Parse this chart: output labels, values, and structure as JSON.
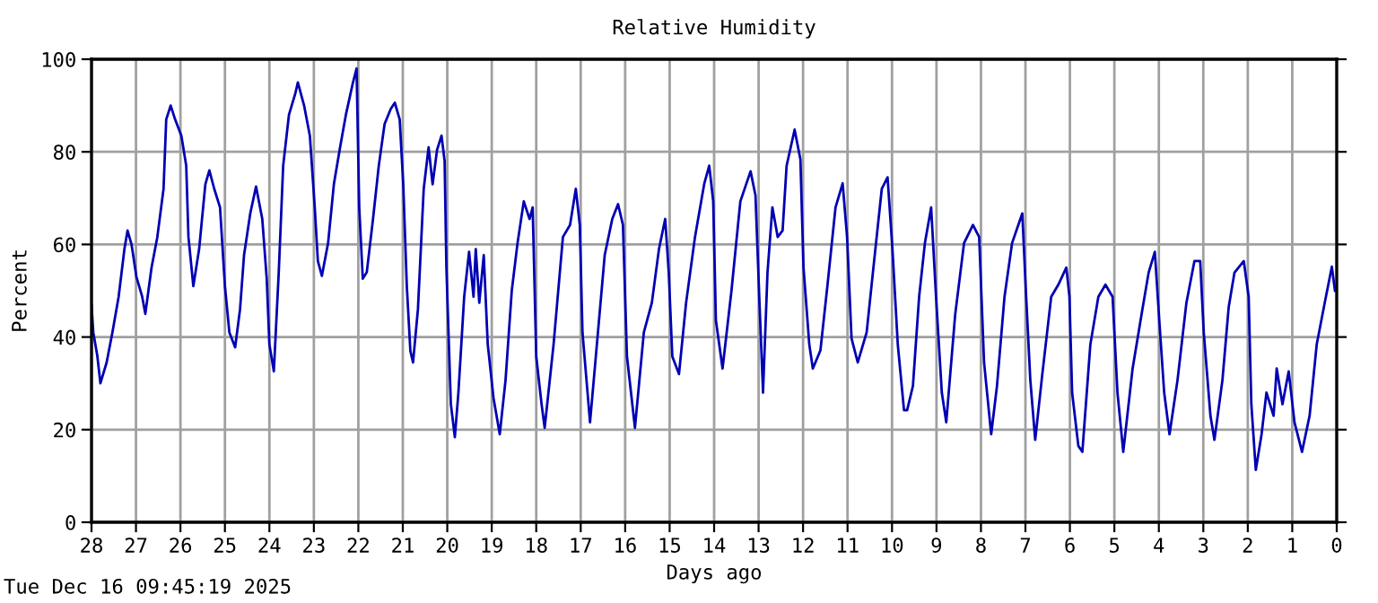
{
  "chart_data": {
    "type": "line",
    "title": "Relative Humidity",
    "xlabel": "Days ago",
    "ylabel": "Percent",
    "annotations": [
      "Tue Dec 16 09:45:19 2025"
    ],
    "xlim": [
      28,
      0
    ],
    "xticks": [
      28,
      27,
      26,
      25,
      24,
      23,
      22,
      21,
      20,
      19,
      18,
      17,
      16,
      15,
      14,
      13,
      12,
      11,
      10,
      9,
      8,
      7,
      6,
      5,
      4,
      3,
      2,
      1,
      0
    ],
    "ylim": [
      0,
      100
    ],
    "yticks": [
      0,
      20,
      40,
      60,
      80,
      100
    ],
    "grid": true,
    "series": [
      {
        "color": "#0000b4",
        "x": [
          28.0,
          27.96,
          27.87,
          27.8,
          27.66,
          27.53,
          27.39,
          27.26,
          27.19,
          27.1,
          26.99,
          26.86,
          26.79,
          26.65,
          26.52,
          26.38,
          26.32,
          26.22,
          26.12,
          25.98,
          25.87,
          25.82,
          25.71,
          25.58,
          25.44,
          25.35,
          25.24,
          25.11,
          25.0,
          24.9,
          24.77,
          24.66,
          24.57,
          24.43,
          24.3,
          24.16,
          24.06,
          24.0,
          23.9,
          23.79,
          23.69,
          23.56,
          23.42,
          23.36,
          23.22,
          23.09,
          22.98,
          22.91,
          22.82,
          22.68,
          22.55,
          22.41,
          22.28,
          22.12,
          22.04,
          21.98,
          21.9,
          21.81,
          21.67,
          21.54,
          21.41,
          21.27,
          21.18,
          21.07,
          20.99,
          20.91,
          20.83,
          20.77,
          20.66,
          20.53,
          20.42,
          20.33,
          20.23,
          20.13,
          20.06,
          20.02,
          19.92,
          19.83,
          19.75,
          19.62,
          19.51,
          19.41,
          19.36,
          19.28,
          19.18,
          19.09,
          18.96,
          18.82,
          18.69,
          18.55,
          18.42,
          18.28,
          18.15,
          18.08,
          18.0,
          17.88,
          17.81,
          17.61,
          17.4,
          17.24,
          17.11,
          17.02,
          16.96,
          16.79,
          16.66,
          16.46,
          16.29,
          16.16,
          16.05,
          15.96,
          15.78,
          15.58,
          15.4,
          15.24,
          15.1,
          15.02,
          14.94,
          14.79,
          14.63,
          14.43,
          14.22,
          14.11,
          14.02,
          13.96,
          13.81,
          13.61,
          13.41,
          13.18,
          13.07,
          12.98,
          12.9,
          12.8,
          12.69,
          12.57,
          12.46,
          12.37,
          12.19,
          12.06,
          11.99,
          11.86,
          11.78,
          11.61,
          11.45,
          11.27,
          11.11,
          11.01,
          10.91,
          10.77,
          10.57,
          10.43,
          10.23,
          10.1,
          9.99,
          9.87,
          9.73,
          9.66,
          9.53,
          9.39,
          9.26,
          9.12,
          9.01,
          8.88,
          8.78,
          8.58,
          8.38,
          8.18,
          8.04,
          7.93,
          7.77,
          7.64,
          7.47,
          7.3,
          7.16,
          7.07,
          6.99,
          6.89,
          6.78,
          6.62,
          6.42,
          6.26,
          6.08,
          6.01,
          5.95,
          5.81,
          5.72,
          5.54,
          5.36,
          5.2,
          5.04,
          4.93,
          4.8,
          4.59,
          4.39,
          4.23,
          4.09,
          3.99,
          3.88,
          3.76,
          3.58,
          3.38,
          3.2,
          3.07,
          2.99,
          2.84,
          2.75,
          2.57,
          2.43,
          2.3,
          2.09,
          1.98,
          1.92,
          1.82,
          1.69,
          1.58,
          1.42,
          1.35,
          1.22,
          1.08,
          0.95,
          0.78,
          0.61,
          0.45,
          0.27,
          0.11,
          0.04
        ],
        "values": [
          47,
          41,
          36,
          30,
          34.5,
          41,
          48.7,
          59,
          63,
          60,
          53,
          48.7,
          45,
          55,
          61.6,
          72,
          87,
          90,
          87,
          83.5,
          77,
          61.6,
          51,
          59,
          73,
          76,
          72,
          68,
          51,
          41,
          37.8,
          46,
          57.7,
          66.7,
          72.5,
          65.5,
          52.6,
          38.4,
          32.6,
          53.9,
          77,
          88,
          92.5,
          95,
          90,
          83.5,
          68,
          56.4,
          53.2,
          60.3,
          73,
          81,
          88,
          95,
          98,
          68,
          52.6,
          54,
          65.5,
          77,
          86,
          89.3,
          90.6,
          87,
          73,
          51,
          37,
          34.5,
          46,
          72,
          81,
          73,
          80.4,
          83.5,
          78,
          55,
          25.5,
          18.4,
          28,
          48.7,
          58.4,
          48.7,
          59,
          47.4,
          57.7,
          38.4,
          26.8,
          19,
          30.7,
          50,
          60.3,
          69.3,
          65.5,
          68,
          35.8,
          25.5,
          20.4,
          38.4,
          61.6,
          64.2,
          72,
          64.2,
          41,
          21.6,
          35.8,
          57.7,
          65.5,
          68.7,
          64.2,
          35.8,
          20.4,
          41,
          47.4,
          59,
          65.5,
          53.9,
          35.8,
          32,
          47.4,
          61.6,
          73.2,
          77,
          69.3,
          43.6,
          33.2,
          50,
          69.3,
          75.8,
          70.6,
          47.4,
          28,
          53.9,
          68,
          61.6,
          63,
          77,
          84.8,
          78.4,
          55,
          38.4,
          33.2,
          37.1,
          51.3,
          68,
          73.2,
          61.6,
          39.7,
          34.5,
          41,
          53.9,
          72,
          74.5,
          59,
          38.4,
          24.2,
          24.2,
          29.4,
          48.7,
          60.3,
          68,
          48.7,
          28,
          21.6,
          44.8,
          60.3,
          64.2,
          61.6,
          34.5,
          19,
          29.4,
          48.7,
          60.3,
          64.2,
          66.7,
          50,
          30.7,
          17.8,
          32,
          48.7,
          51.3,
          55,
          48.7,
          28,
          16.5,
          15.2,
          38.4,
          48.7,
          51.3,
          48.7,
          28,
          15.2,
          33.2,
          44.8,
          53.9,
          58.4,
          43.6,
          28,
          19,
          30.7,
          47.4,
          56.4,
          56.4,
          41,
          23,
          17.8,
          30.7,
          46.4,
          53.9,
          56.4,
          48.7,
          25.5,
          11.3,
          19,
          28,
          23,
          33.2,
          25.5,
          32.6,
          21.6,
          15.2,
          23,
          38.4,
          47.4,
          55.2,
          50
        ]
      }
    ]
  }
}
